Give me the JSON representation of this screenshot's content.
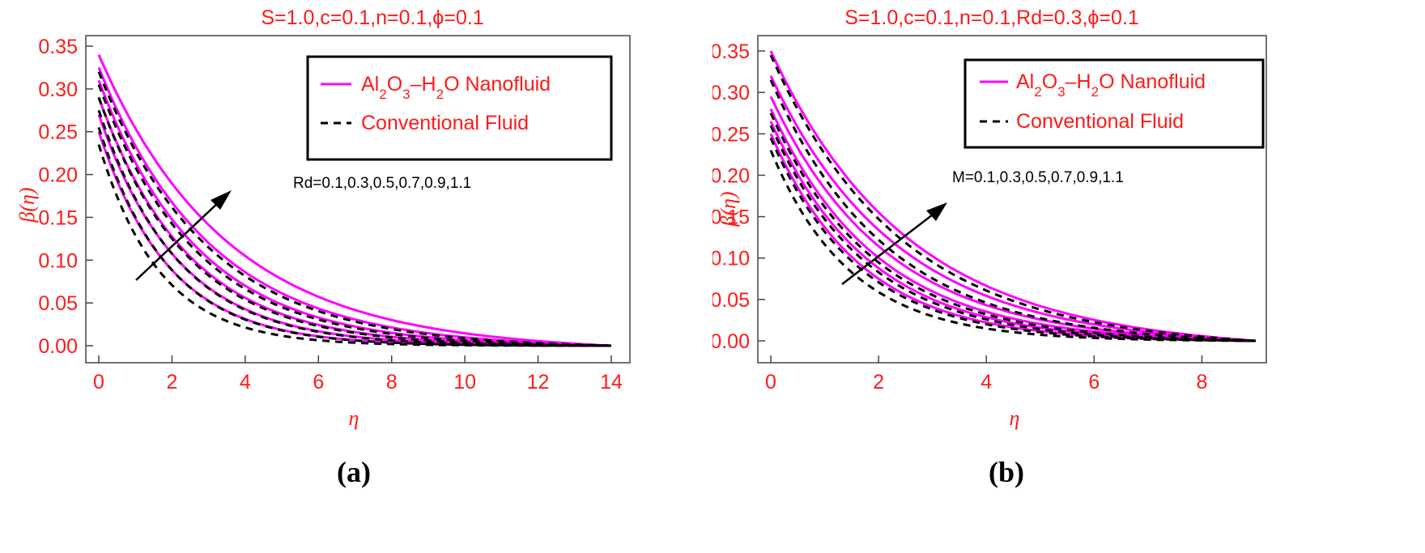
{
  "colors": {
    "nanofluid": "#ff00ff",
    "conventional": "#000000",
    "text": "#ff1a1a"
  },
  "chart_data": [
    {
      "type": "line",
      "panel_label": "(a)",
      "title": "S=1.0,c=0.1,n=0.1,ϕ=0.1",
      "xlabel": "η",
      "ylabel": "β(η)",
      "xlim": [
        0,
        14
      ],
      "ylim": [
        0,
        0.35
      ],
      "xticks": [
        "0",
        "2",
        "4",
        "6",
        "8",
        "10",
        "12",
        "14"
      ],
      "yticks": [
        "0.00",
        "0.05",
        "0.10",
        "0.15",
        "0.20",
        "0.25",
        "0.30",
        "0.35"
      ],
      "legend": {
        "position": "top-right",
        "nanofluid_parts": [
          "Al",
          "2",
          "O",
          "3",
          "–H",
          "2",
          "O Nanofluid"
        ],
        "conventional": "Conventional Fluid"
      },
      "annotation": "Rd=0.1,0.3,0.5,0.7,0.9,1.1",
      "x_end": 14,
      "series": [
        {
          "style": "nanofluid",
          "y0": 0.25,
          "decay": 0.52
        },
        {
          "style": "nanofluid",
          "y0": 0.27,
          "decay": 0.46
        },
        {
          "style": "nanofluid",
          "y0": 0.29,
          "decay": 0.41
        },
        {
          "style": "nanofluid",
          "y0": 0.31,
          "decay": 0.37
        },
        {
          "style": "nanofluid",
          "y0": 0.325,
          "decay": 0.33
        },
        {
          "style": "nanofluid",
          "y0": 0.34,
          "decay": 0.29
        },
        {
          "style": "conventional",
          "y0": 0.235,
          "decay": 0.6
        },
        {
          "style": "conventional",
          "y0": 0.255,
          "decay": 0.53
        },
        {
          "style": "conventional",
          "y0": 0.275,
          "decay": 0.47
        },
        {
          "style": "conventional",
          "y0": 0.29,
          "decay": 0.42
        },
        {
          "style": "conventional",
          "y0": 0.305,
          "decay": 0.38
        },
        {
          "style": "conventional",
          "y0": 0.32,
          "decay": 0.34
        }
      ]
    },
    {
      "type": "line",
      "panel_label": "(b)",
      "title": "S=1.0,c=0.1,n=0.1,Rd=0.3,ϕ=0.1",
      "xlabel": "η",
      "ylabel": "β(η)",
      "xlim": [
        0,
        9
      ],
      "ylim": [
        0,
        0.35
      ],
      "xticks": [
        "0",
        "2",
        "4",
        "6",
        "8"
      ],
      "yticks": [
        "0.00",
        "0.05",
        "0.10",
        "0.15",
        "0.20",
        "0.25",
        "0.30",
        "0.35"
      ],
      "legend": {
        "position": "top-right",
        "nanofluid_parts": [
          "Al",
          "2",
          "O",
          "3",
          "–H",
          "2",
          "O Nanofluid"
        ],
        "conventional": "Conventional Fluid"
      },
      "annotation": "M=0.1,0.3,0.5,0.7,0.9,1.1",
      "x_end": 9,
      "series": [
        {
          "style": "nanofluid",
          "y0": 0.25,
          "decay": 0.6
        },
        {
          "style": "nanofluid",
          "y0": 0.265,
          "decay": 0.55
        },
        {
          "style": "nanofluid",
          "y0": 0.28,
          "decay": 0.51
        },
        {
          "style": "nanofluid",
          "y0": 0.295,
          "decay": 0.47
        },
        {
          "style": "nanofluid",
          "y0": 0.32,
          "decay": 0.43
        },
        {
          "style": "nanofluid",
          "y0": 0.35,
          "decay": 0.4
        },
        {
          "style": "conventional",
          "y0": 0.23,
          "decay": 0.68
        },
        {
          "style": "conventional",
          "y0": 0.245,
          "decay": 0.62
        },
        {
          "style": "conventional",
          "y0": 0.26,
          "decay": 0.57
        },
        {
          "style": "conventional",
          "y0": 0.275,
          "decay": 0.53
        },
        {
          "style": "conventional",
          "y0": 0.315,
          "decay": 0.47
        },
        {
          "style": "conventional",
          "y0": 0.345,
          "decay": 0.42
        }
      ]
    }
  ]
}
